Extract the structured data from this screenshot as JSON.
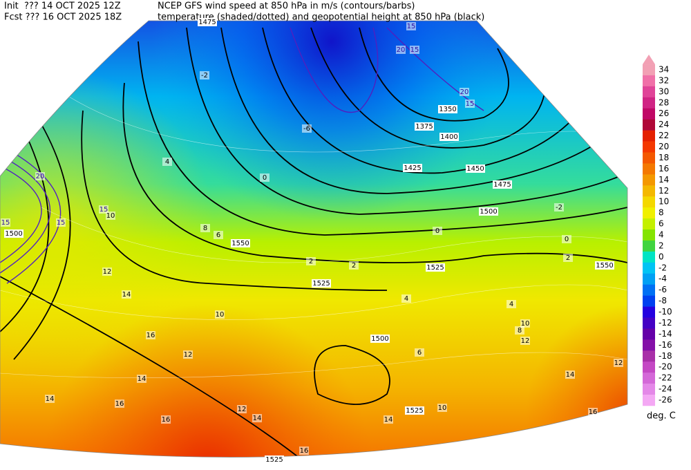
{
  "header": {
    "init": "Init  ??? 14 OCT 2025 12Z",
    "fcst": "Fcst ??? 16 OCT 2025 18Z",
    "title_line1": "NCEP GFS wind speed at 850 hPa in m/s (contours/barbs)",
    "title_line2": "temperature (shaded/dotted) and geopotential height at 850 hPa (black)"
  },
  "colorbar": {
    "levels": [
      34,
      32,
      30,
      28,
      26,
      24,
      22,
      20,
      18,
      16,
      14,
      12,
      10,
      8,
      6,
      4,
      2,
      0,
      -2,
      -4,
      -6,
      -8,
      -10,
      -12,
      -14,
      -16,
      -18,
      -20,
      -22,
      -24,
      -26
    ],
    "colors": [
      "#f2a0b4",
      "#f070a8",
      "#e04498",
      "#d02484",
      "#c00866",
      "#b00838",
      "#e42000",
      "#f43800",
      "#f45800",
      "#f47800",
      "#f49800",
      "#f4b800",
      "#f4d800",
      "#f0f000",
      "#c4f000",
      "#84e400",
      "#40d440",
      "#00e4c4",
      "#00c4f4",
      "#00a0f4",
      "#0070f4",
      "#0040f0",
      "#2400e0",
      "#4400c4",
      "#6400a8",
      "#8410a8",
      "#a830a8",
      "#c448c4",
      "#d468d8",
      "#e488e8",
      "#f4a8f4"
    ],
    "top_arrow_color": "#f2a0b4",
    "unit": "deg. C"
  },
  "map_labels": {
    "height": [
      1475,
      1350,
      1375,
      1400,
      1425,
      1450,
      1475,
      1500,
      1525,
      1525,
      1550,
      1550,
      1500,
      1525,
      1525,
      1500
    ],
    "wind": [
      15,
      15,
      20,
      15,
      15,
      20,
      15,
      20,
      15
    ],
    "temperature": [
      12,
      14,
      10,
      16,
      12,
      14,
      16,
      14,
      12,
      14,
      16,
      10,
      12,
      8,
      4,
      2,
      0,
      0,
      -2,
      0,
      4,
      8,
      6,
      2,
      2,
      4,
      6,
      10,
      14,
      16,
      12,
      14,
      16,
      -2,
      -6,
      10
    ]
  }
}
